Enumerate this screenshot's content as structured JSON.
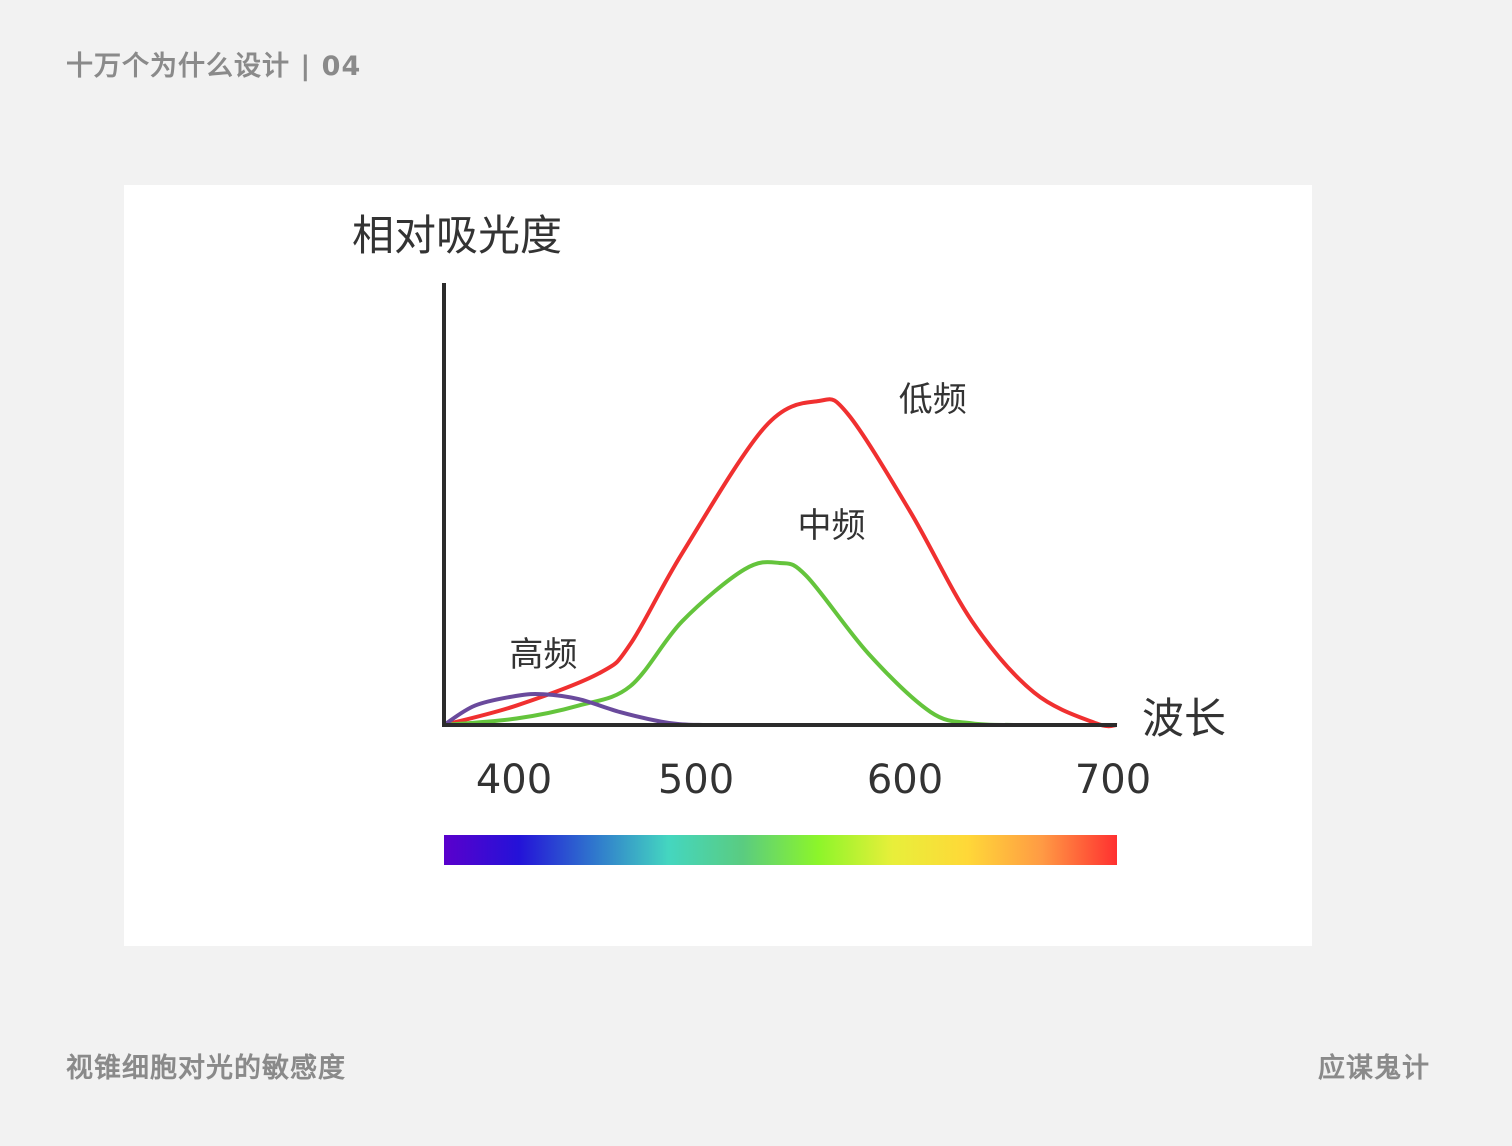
{
  "header": {
    "title": "十万个为什么设计 | 04"
  },
  "footer": {
    "caption": "视锥细胞对光的敏感度",
    "brand": "应谋鬼计"
  },
  "colors": {
    "background": "#f2f2f2",
    "card": "#ffffff",
    "axis": "#2b2b2b",
    "text": "#333333",
    "muted": "#8a8a8a"
  },
  "chart_data": {
    "type": "line",
    "title": "",
    "ylabel": "相对吸光度",
    "xlabel": "波长",
    "xlim": [
      385,
      710
    ],
    "ylim": [
      0,
      1
    ],
    "xticks": [
      400,
      500,
      600,
      700
    ],
    "grid": false,
    "legend": "none",
    "series": [
      {
        "name": "低频",
        "color": "#f03030",
        "x": [
          385,
          420,
          460,
          475,
          500,
          540,
          566,
          580,
          610,
          640,
          670,
          700,
          710
        ],
        "y": [
          0.0,
          0.06,
          0.16,
          0.25,
          0.53,
          0.92,
          1.0,
          0.96,
          0.66,
          0.32,
          0.1,
          0.005,
          0.0
        ]
      },
      {
        "name": "中频",
        "color": "#64c43c",
        "x": [
          385,
          420,
          450,
          475,
          500,
          530,
          547,
          560,
          590,
          620,
          640,
          660
        ],
        "y": [
          0.0,
          0.02,
          0.06,
          0.12,
          0.32,
          0.48,
          0.5,
          0.46,
          0.22,
          0.04,
          0.005,
          0.0
        ]
      },
      {
        "name": "高频",
        "color": "#6a4a9c",
        "x": [
          385,
          400,
          420,
          433,
          450,
          470,
          490,
          500,
          510
        ],
        "y": [
          0.0,
          0.06,
          0.09,
          0.095,
          0.08,
          0.04,
          0.01,
          0.002,
          0.0
        ]
      }
    ],
    "spectrum_gradient": [
      "#5a00cc",
      "#2412d8",
      "#2f76cd",
      "#44d6c0",
      "#5acc80",
      "#8cf52a",
      "#e8ef3a",
      "#ffd838",
      "#ff9a44",
      "#ff3030"
    ]
  }
}
